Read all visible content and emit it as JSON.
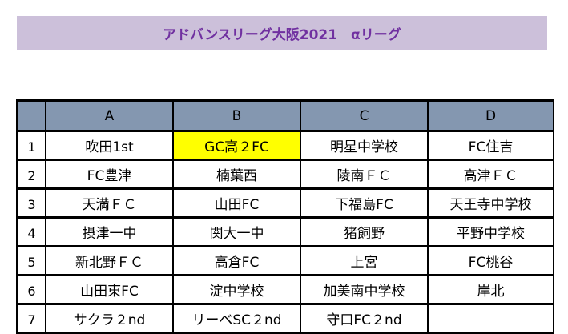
{
  "title": "アドバンスリーグ大阪2021　αリーグ",
  "colors": {
    "title_bg": "#ccc0da",
    "title_text": "#7030a0",
    "header_bg": "#8497b0",
    "highlight": "#ffff00"
  },
  "columns": [
    "A",
    "B",
    "C",
    "D"
  ],
  "rows": [
    {
      "num": "1",
      "cells": [
        "吹田1st",
        "GC高２FC",
        "明星中学校",
        "FC住吉"
      ]
    },
    {
      "num": "2",
      "cells": [
        "FC豊津",
        "楠葉西",
        "陵南ＦＣ",
        "高津ＦＣ"
      ]
    },
    {
      "num": "3",
      "cells": [
        "天満ＦＣ",
        "山田FC",
        "下福島FC",
        "天王寺中学校"
      ]
    },
    {
      "num": "4",
      "cells": [
        "摂津一中",
        "関大一中",
        "猪飼野",
        "平野中学校"
      ]
    },
    {
      "num": "5",
      "cells": [
        "新北野ＦＣ",
        "高倉FC",
        "上宮",
        "FC桃谷"
      ]
    },
    {
      "num": "6",
      "cells": [
        "山田東FC",
        "淀中学校",
        "加美南中学校",
        "岸北"
      ]
    },
    {
      "num": "7",
      "cells": [
        "サクラ２nd",
        "リーベSC２nd",
        "守口FC２nd",
        ""
      ]
    }
  ],
  "highlighted_cell": "GC高２FC"
}
